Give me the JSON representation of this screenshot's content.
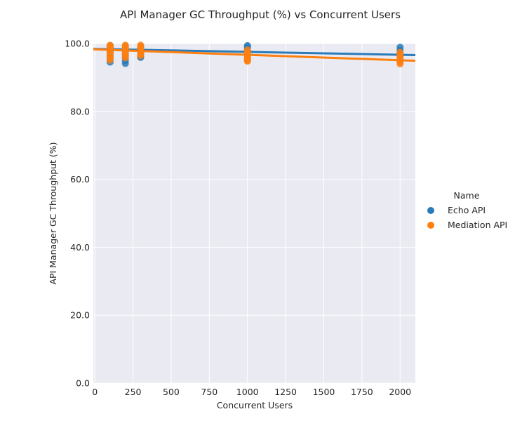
{
  "chart_data": {
    "type": "scatter",
    "title": "API Manager GC Throughput (%) vs Concurrent Users",
    "xlabel": "Concurrent Users",
    "ylabel": "API Manager GC Throughput (%)",
    "xlim": [
      -10,
      2100
    ],
    "ylim": [
      0,
      100
    ],
    "xticks": [
      0,
      250,
      500,
      750,
      1000,
      1250,
      1500,
      1750,
      2000
    ],
    "yticks": [
      0,
      20,
      40,
      60,
      80,
      100
    ],
    "ytick_labels": [
      "0.0",
      "20.0",
      "40.0",
      "60.0",
      "80.0",
      "100.0"
    ],
    "grid": true,
    "legend_title": "Name",
    "legend_placement": "right",
    "series": [
      {
        "name": "Echo API",
        "color": "#2a7bba",
        "regression": {
          "x": [
            -10,
            2100
          ],
          "y": [
            98.4,
            96.6
          ]
        },
        "points": [
          [
            100,
            99.3
          ],
          [
            100,
            98.8
          ],
          [
            100,
            98.2
          ],
          [
            100,
            97.6
          ],
          [
            100,
            96.8
          ],
          [
            100,
            96.0
          ],
          [
            100,
            95.2
          ],
          [
            100,
            94.5
          ],
          [
            200,
            99.2
          ],
          [
            200,
            98.6
          ],
          [
            200,
            97.9
          ],
          [
            200,
            97.1
          ],
          [
            200,
            96.4
          ],
          [
            200,
            95.7
          ],
          [
            200,
            94.9
          ],
          [
            200,
            94.1
          ],
          [
            300,
            99.1
          ],
          [
            300,
            98.5
          ],
          [
            300,
            97.8
          ],
          [
            300,
            97.0
          ],
          [
            300,
            96.2
          ],
          [
            300,
            95.9
          ],
          [
            1000,
            99.4
          ],
          [
            1000,
            99.0
          ],
          [
            1000,
            98.6
          ],
          [
            1000,
            98.1
          ],
          [
            1000,
            97.4
          ],
          [
            1000,
            96.8
          ],
          [
            1000,
            96.0
          ],
          [
            1000,
            95.3
          ],
          [
            2000,
            98.9
          ],
          [
            2000,
            98.1
          ],
          [
            2000,
            97.4
          ],
          [
            2000,
            96.7
          ],
          [
            2000,
            95.9
          ],
          [
            2000,
            95.0
          ]
        ]
      },
      {
        "name": "Mediation API",
        "color": "#ff7f0e",
        "regression": {
          "x": [
            -10,
            2100
          ],
          "y": [
            98.3,
            94.9
          ]
        },
        "points": [
          [
            100,
            99.5
          ],
          [
            100,
            99.1
          ],
          [
            100,
            98.5
          ],
          [
            100,
            97.9
          ],
          [
            100,
            97.3
          ],
          [
            100,
            96.6
          ],
          [
            100,
            95.8
          ],
          [
            100,
            95.1
          ],
          [
            200,
            99.5
          ],
          [
            200,
            99.0
          ],
          [
            200,
            98.3
          ],
          [
            200,
            97.7
          ],
          [
            200,
            97.0
          ],
          [
            200,
            96.5
          ],
          [
            200,
            95.8
          ],
          [
            300,
            99.5
          ],
          [
            300,
            98.9
          ],
          [
            300,
            98.2
          ],
          [
            300,
            97.6
          ],
          [
            300,
            97.0
          ],
          [
            300,
            96.4
          ],
          [
            1000,
            98.1
          ],
          [
            1000,
            97.3
          ],
          [
            1000,
            96.6
          ],
          [
            1000,
            96.0
          ],
          [
            1000,
            95.5
          ],
          [
            1000,
            95.0
          ],
          [
            1000,
            94.8
          ],
          [
            2000,
            97.4
          ],
          [
            2000,
            96.6
          ],
          [
            2000,
            95.8
          ],
          [
            2000,
            95.1
          ],
          [
            2000,
            94.5
          ],
          [
            2000,
            94.0
          ]
        ]
      }
    ]
  }
}
